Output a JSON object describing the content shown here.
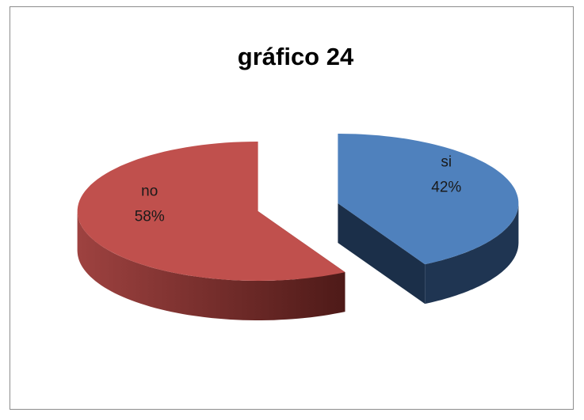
{
  "chart_data": {
    "type": "pie",
    "title": "gráfico 24",
    "categories": [
      "si",
      "no"
    ],
    "values": [
      42,
      58
    ],
    "value_labels": [
      "42%",
      "58%"
    ],
    "colors": [
      "#4f81bd",
      "#c0504d"
    ]
  }
}
